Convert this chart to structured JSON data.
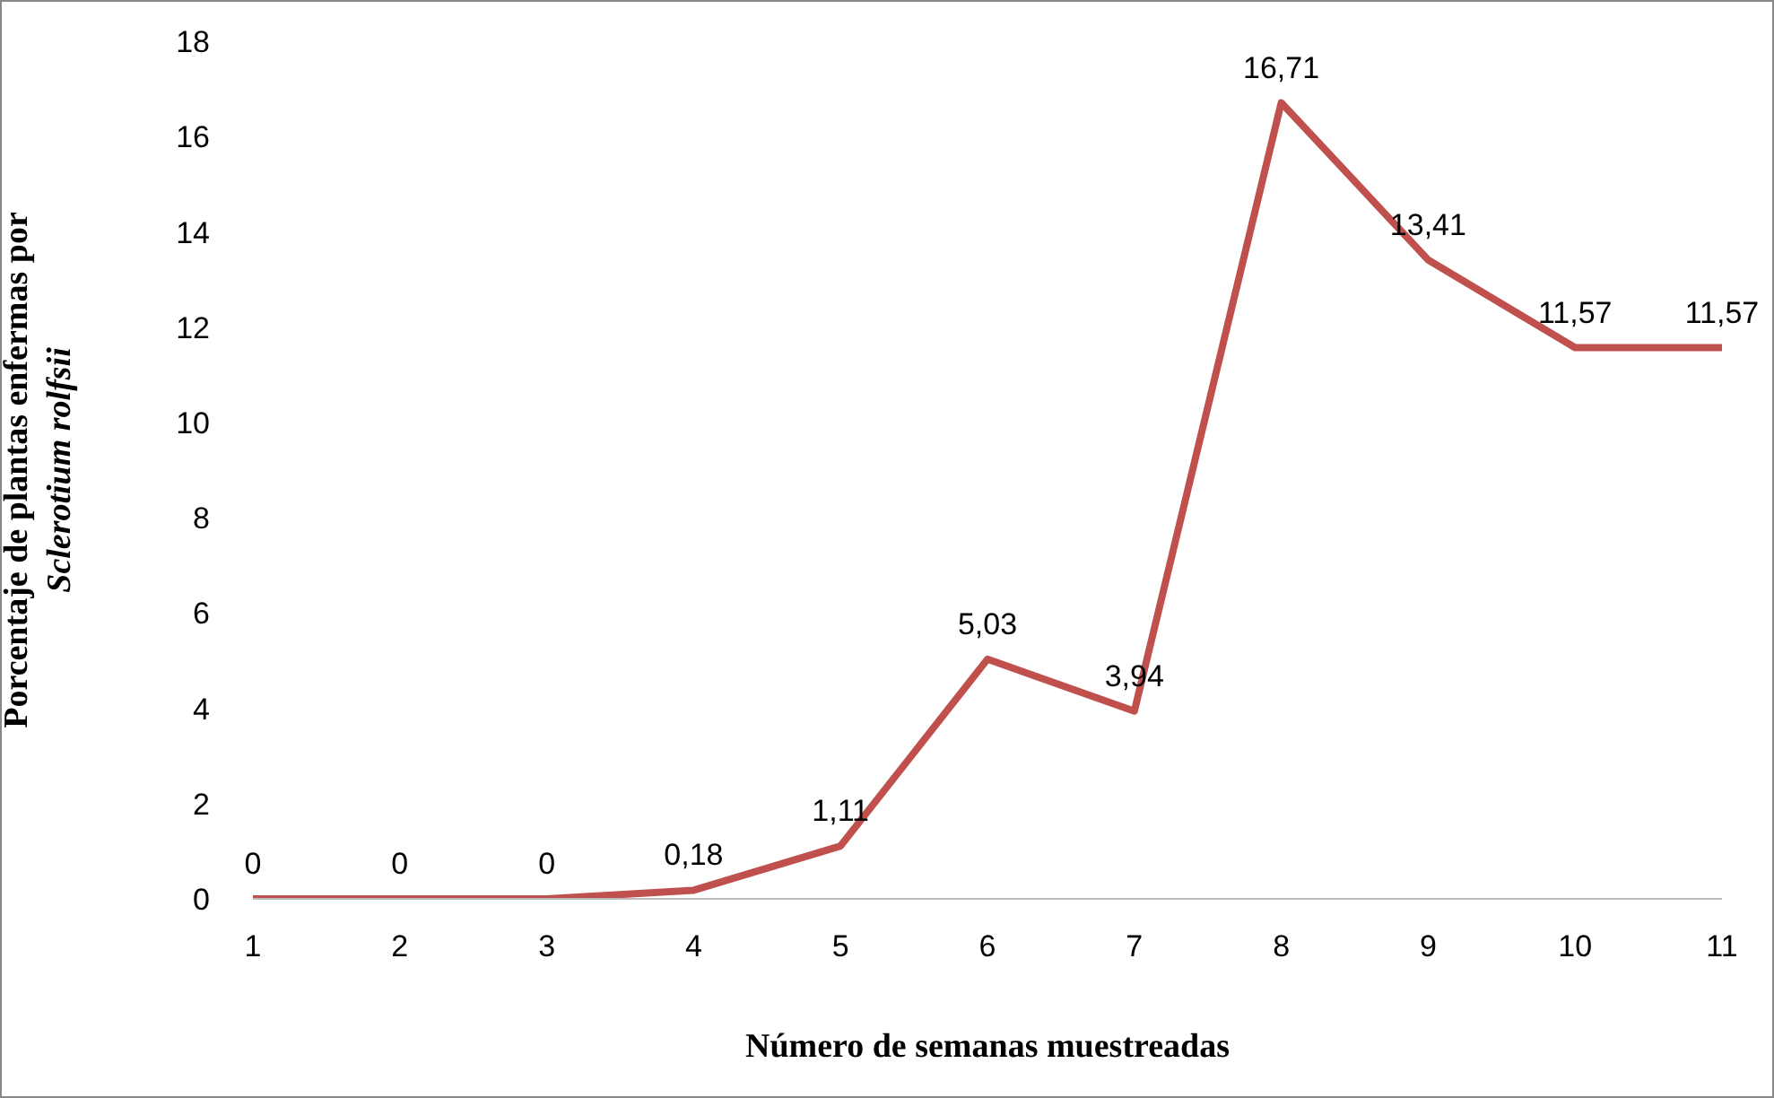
{
  "chart_data": {
    "type": "line",
    "xlabel": "Número de semanas muestreadas",
    "ylabel": "Porcentaje de plantas enfermas por Sclerotium rolfsii",
    "categories": [
      "1",
      "2",
      "3",
      "4",
      "5",
      "6",
      "7",
      "8",
      "9",
      "10",
      "11"
    ],
    "series": [
      {
        "color": "#c0504d",
        "values": [
          0,
          0,
          0,
          0.18,
          1.11,
          5.03,
          3.94,
          16.71,
          13.41,
          11.57,
          11.57
        ],
        "value_labels": [
          "0",
          "0",
          "0",
          "0,18",
          "1,11",
          "5,03",
          "3,94",
          "16,71",
          "13,41",
          "11,57",
          "11,57"
        ]
      }
    ],
    "ylim": [
      0,
      18
    ],
    "yticks": [
      0,
      2,
      4,
      6,
      8,
      10,
      12,
      14,
      16,
      18
    ],
    "grid": false,
    "legend": false,
    "marker": "none",
    "line_style": "solid"
  }
}
